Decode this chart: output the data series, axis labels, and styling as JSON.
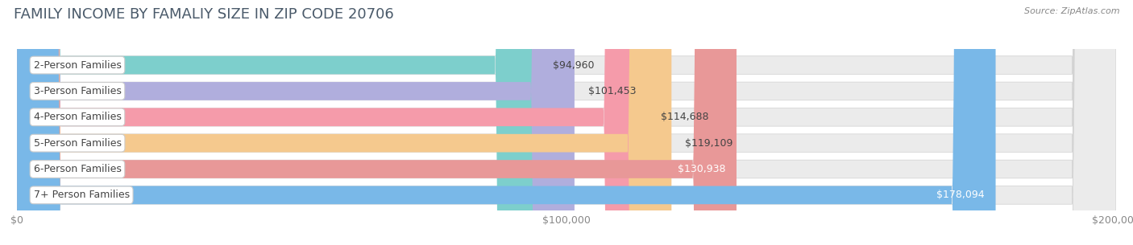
{
  "title": "FAMILY INCOME BY FAMALIY SIZE IN ZIP CODE 20706",
  "source": "Source: ZipAtlas.com",
  "categories": [
    "2-Person Families",
    "3-Person Families",
    "4-Person Families",
    "5-Person Families",
    "6-Person Families",
    "7+ Person Families"
  ],
  "values": [
    94960,
    101453,
    114688,
    119109,
    130938,
    178094
  ],
  "labels": [
    "$94,960",
    "$101,453",
    "$114,688",
    "$119,109",
    "$130,938",
    "$178,094"
  ],
  "bar_colors": [
    "#7dcfcc",
    "#b0aedd",
    "#f59baa",
    "#f5c98e",
    "#e89898",
    "#79b8e8"
  ],
  "label_inside": [
    false,
    false,
    false,
    false,
    true,
    true
  ],
  "background_color": "#ffffff",
  "bar_bg_color": "#ebebeb",
  "xlim": [
    0,
    200000
  ],
  "xticklabels": [
    "$0",
    "$100,000",
    "$200,000"
  ],
  "title_fontsize": 13,
  "bar_label_fontsize": 9,
  "category_fontsize": 9,
  "bar_height": 0.7,
  "title_color": "#4a5a6a",
  "source_color": "#888888"
}
